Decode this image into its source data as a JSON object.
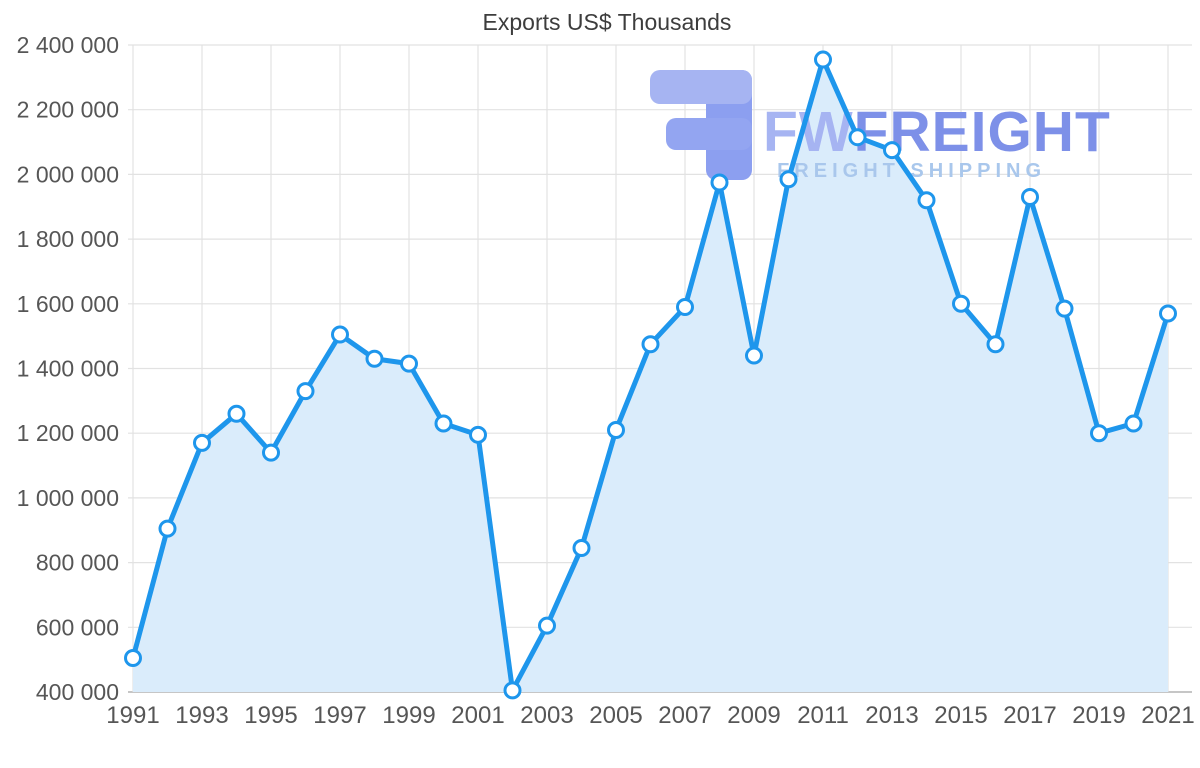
{
  "chart": {
    "title": "Exports US$ Thousands"
  },
  "watermark": {
    "brand_prefix": "FW",
    "brand_suffix": "FREIGHT",
    "tagline": "FREIGHT SHIPPING"
  },
  "colors": {
    "line": "#1e96ec",
    "area_fill": "#daecfb",
    "marker_fill": "#ffffff",
    "grid": "#e2e2e2",
    "axis_line": "#b3b3b3",
    "axis_text": "#565656",
    "title_text": "#3d3d3d",
    "watermark_dark": "#7d90e8",
    "watermark_light": "#a6b4f2",
    "watermark_mid": "#93a5f1",
    "watermark_tagline": "#a9c7ec"
  },
  "chart_data": {
    "type": "area",
    "title": "Exports US$ Thousands",
    "xlabel": "",
    "ylabel": "",
    "x": [
      1991,
      1992,
      1993,
      1994,
      1995,
      1996,
      1997,
      1998,
      1999,
      2000,
      2001,
      2002,
      2003,
      2004,
      2005,
      2006,
      2007,
      2008,
      2009,
      2010,
      2011,
      2012,
      2013,
      2014,
      2015,
      2016,
      2017,
      2018,
      2019,
      2020,
      2021
    ],
    "values": [
      505000,
      905000,
      1170000,
      1260000,
      1140000,
      1330000,
      1505000,
      1430000,
      1415000,
      1230000,
      1195000,
      405000,
      605000,
      845000,
      1210000,
      1475000,
      1590000,
      1975000,
      1440000,
      1985000,
      2355000,
      2115000,
      2075000,
      1920000,
      1600000,
      1475000,
      1930000,
      1585000,
      1200000,
      1230000,
      1570000
    ],
    "ylim": [
      400000,
      2400000
    ],
    "y_tick_step": 200000,
    "y_tick_labels": [
      "400 000",
      "600 000",
      "800 000",
      "1 000 000",
      "1 200 000",
      "1 400 000",
      "1 600 000",
      "1 800 000",
      "2 000 000",
      "2 200 000",
      "2 400 000"
    ],
    "x_tick_labels": [
      "1991",
      "1993",
      "1995",
      "1997",
      "1999",
      "2001",
      "2003",
      "2005",
      "2007",
      "2009",
      "2011",
      "2013",
      "2015",
      "2017",
      "2019",
      "2021"
    ],
    "grid": true,
    "legend": false,
    "markers": true
  }
}
